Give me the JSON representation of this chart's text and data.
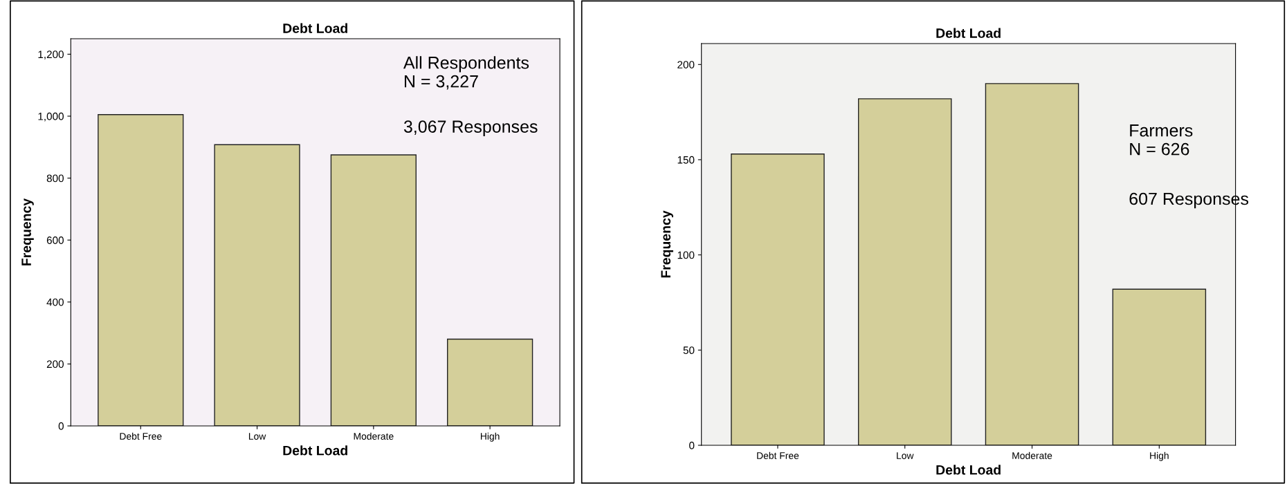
{
  "chart_data": [
    {
      "type": "bar",
      "title": "Debt Load",
      "xlabel": "Debt Load",
      "ylabel": "Frequency",
      "categories": [
        "Debt Free",
        "Low",
        "Moderate",
        "High"
      ],
      "values": [
        1005,
        908,
        875,
        280
      ],
      "color": "#d4cf9a",
      "ylim": [
        0,
        1250
      ],
      "yticks": [
        0,
        200,
        400,
        600,
        800,
        {
          "value": 1000,
          "label": "1,000"
        },
        {
          "value": 1200,
          "label": "1,200"
        }
      ],
      "grid": false,
      "annotations": [
        "All Respondents\nN = 3,227",
        "3,067 Responses"
      ]
    },
    {
      "type": "bar",
      "title": "Debt Load",
      "xlabel": "Debt Load",
      "ylabel": "Frequency",
      "categories": [
        "Debt Free",
        "Low",
        "Moderate",
        "High"
      ],
      "values": [
        153,
        182,
        190,
        82
      ],
      "color": "#d4cf9a",
      "ylim": [
        0,
        211
      ],
      "yticks": [
        0,
        50,
        100,
        150,
        200
      ],
      "grid": false,
      "annotations": [
        "Farmers\nN = 626",
        "607 Responses"
      ]
    }
  ]
}
